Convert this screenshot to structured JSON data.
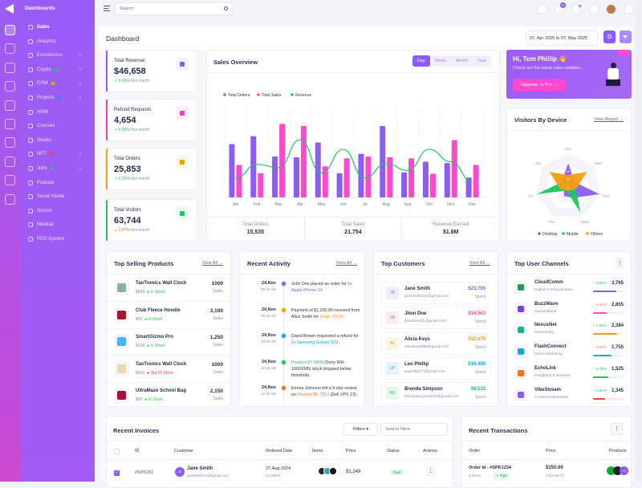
{
  "sidebar": {
    "section": "Dashboards",
    "items": [
      {
        "label": "Sales",
        "active": true
      },
      {
        "label": "Analytics"
      },
      {
        "label": "Ecommerce",
        "chev": true
      },
      {
        "label": "Crypto",
        "chev": true,
        "badge": "#22c55e"
      },
      {
        "label": "CRM",
        "chev": true,
        "badge": "#f59e0b"
      },
      {
        "label": "Projects",
        "chev": true,
        "badge": "#3b82f6"
      },
      {
        "label": "HRM"
      },
      {
        "label": "Courses"
      },
      {
        "label": "Stocks"
      },
      {
        "label": "NFT",
        "chev": true,
        "badge": "#ef4444"
      },
      {
        "label": "Jobs",
        "chev": true,
        "badge": "#22c55e"
      },
      {
        "label": "Podcast"
      },
      {
        "label": "Social Media"
      },
      {
        "label": "School"
      },
      {
        "label": "Medical"
      },
      {
        "label": "POS System"
      }
    ],
    "rail_icons": [
      "home-icon",
      "apps-icon",
      "layers-icon",
      "file-icon",
      "diamond-icon",
      "gift-icon",
      "compass-icon",
      "store-icon",
      "chart-icon",
      "table-icon"
    ]
  },
  "topbar": {
    "search_placeholder": "Search",
    "cart_count": "5"
  },
  "header": {
    "title": "Dashboard",
    "date_range": "07, Apr 2025 to 07, May 2025"
  },
  "stats": [
    {
      "label": "Total Revenue",
      "value": "$46,658",
      "change": "0.45%",
      "trend": "up",
      "suffix": "this month",
      "color": "#8b5cf6"
    },
    {
      "label": "Refund Requests",
      "value": "4,654",
      "change": "4.43%",
      "trend": "up",
      "suffix": "this month",
      "color": "#f43fb5"
    },
    {
      "label": "Total Orders",
      "value": "25,853",
      "change": "1.25%",
      "trend": "up",
      "suffix": "this month",
      "color": "#f59e0b"
    },
    {
      "label": "Total Visitors",
      "value": "63,744",
      "change": "2.97%",
      "trend": "down",
      "suffix": "this month",
      "color": "#22c55e"
    }
  ],
  "sales_overview": {
    "title": "Sales Overview",
    "tabs": [
      "Day",
      "Week",
      "Month",
      "Year"
    ],
    "active_tab": "Day",
    "footer": [
      {
        "label": "Total Orders",
        "value": "15,535"
      },
      {
        "label": "Total Sales",
        "value": "21,754"
      },
      {
        "label": "Revenue Earned",
        "value": "$1.8M"
      }
    ]
  },
  "chart_data": [
    {
      "type": "bar",
      "categories": [
        "Jan",
        "Feb",
        "Mar",
        "Apr",
        "May",
        "Jun",
        "Jul",
        "Aug",
        "Sep",
        "Oct",
        "Nov",
        "Dec"
      ],
      "series": [
        {
          "name": "Total Orders",
          "type": "bar",
          "color": "#8b5cf6",
          "values": [
            202,
            232,
            155,
            152,
            208,
            92,
            165,
            270,
            95,
            135,
            130,
            75
          ]
        },
        {
          "name": "Total Sales",
          "type": "bar",
          "color": "#ff49cd",
          "values": [
            123,
            92,
            278,
            270,
            118,
            148,
            155,
            152,
            148,
            90,
            217,
            123
          ]
        },
        {
          "name": "Revenue",
          "type": "line",
          "color": "#22c55e",
          "values": [
            72,
            125,
            113,
            218,
            93,
            182,
            74,
            128,
            102,
            182,
            135,
            60
          ]
        }
      ],
      "ylim": [
        0,
        340
      ],
      "grid": "vertical dashed",
      "legend": "top-left"
    },
    {
      "type": "radar",
      "title": "Visitors By Device",
      "axes": [
        "Sun",
        "Mon",
        "Tues",
        "Wed",
        "Thu",
        "Fri",
        "Sat"
      ],
      "ticks": [
        "0",
        "20",
        "40",
        "60"
      ],
      "rmax": 80,
      "series": [
        {
          "name": "Desktop",
          "color": "#8b5cf6",
          "values": [
            60,
            20,
            80,
            30,
            25,
            10,
            20
          ]
        },
        {
          "name": "Mobile",
          "color": "#22c55e",
          "values": [
            10,
            15,
            20,
            70,
            10,
            80,
            20
          ]
        },
        {
          "name": "Others",
          "color": "#f59e0b",
          "values": [
            30,
            60,
            20,
            10,
            10,
            20,
            60
          ]
        }
      ],
      "legend": "bottom"
    }
  ],
  "promo": {
    "greeting": "Hi, Tom Phillip 👋",
    "text": "Check out the latest sales updates.",
    "button": "Upgrade To Pro →"
  },
  "visitors": {
    "title": "Visitors By Device",
    "link": "View Report →"
  },
  "top_products": {
    "title": "Top Selling Products",
    "link": "View All →",
    "items": [
      {
        "name": "TaoTronics Wall Clock",
        "price": "$699",
        "status": "In Stock",
        "sales": "1000",
        "unit": "Sales"
      },
      {
        "name": "Club Fleece Hoodie",
        "price": "$55",
        "status": "In Stock",
        "sales": "3,100",
        "unit": "Sales"
      },
      {
        "name": "SmartGizmo Pro",
        "price": "$199",
        "status": "In Stock",
        "sales": "1,250",
        "unit": "Sales"
      },
      {
        "name": "TaoTronics Wall Clock",
        "price": "$699",
        "status": "Out Of Stock",
        "sales": "1000",
        "unit": "Sales"
      },
      {
        "name": "UltraMaze School Bag",
        "price": "$89",
        "status": "In Stock",
        "sales": "2,150",
        "unit": "Sales"
      }
    ]
  },
  "activity": {
    "title": "Recent Activity",
    "link": "View All →",
    "items": [
      {
        "date": "24,Nov",
        "time": "08:45 AM",
        "color": "#8b5cf6",
        "pre": "John Doe placed an order for ",
        "hl": "5x Apple iPhone 14",
        "post": ""
      },
      {
        "date": "24,Nov",
        "time": "09:15 AM",
        "color": "#f59e0b",
        "pre": "Payment of $1,250.00 received from Alice Smith for ",
        "hl": "Order #1020",
        "post": "."
      },
      {
        "date": "24,Nov",
        "time": "10:00 AM",
        "color": "#0ea5e9",
        "pre": "David Brown requested a refund for ",
        "hl": "1x Samsung Galaxy S22",
        "post": "."
      },
      {
        "date": "24,Nov",
        "time": "10:45 AM",
        "color": "#22c55e",
        "pre": "",
        "hl": "Product ID: 5409",
        "post": " (Sony WH-1000XM5) stock dropped below threshold."
      },
      {
        "date": "24,Nov",
        "time": "11:30 AM",
        "color": "#f97316",
        "pre": "Emma Johnson left a 5-star review on ",
        "hl": "Product ID: 7312",
        "post": " (Dell XPS 13)."
      }
    ]
  },
  "customers": {
    "title": "Top Customers",
    "link": "View All →",
    "items": [
      {
        "initials": "JS",
        "name": "Jane Smith",
        "email": "janesmith215@gmail.com",
        "amount": "$23,755",
        "label": "Spent",
        "color": "#8b5cf6"
      },
      {
        "initials": "JD",
        "name": "Jhon Doe",
        "email": "jhondoe431@gmail.com",
        "amount": "$14,563",
        "label": "Spent",
        "color": "#ec4899"
      },
      {
        "initials": "AK",
        "name": "Alicia Keys",
        "email": "aliciakeys986@gmail.com",
        "amount": "$12,075",
        "label": "Spent",
        "color": "#f59e0b"
      },
      {
        "initials": "LP",
        "name": "Leo Phillip",
        "email": "leophillip77@gmail.com",
        "amount": "$10,485",
        "label": "Spent",
        "color": "#0ea5e9"
      },
      {
        "initials": "BS",
        "name": "Brenda Simpson",
        "email": "brendasimpson075@gmail.com",
        "amount": "$8,533",
        "label": "Spent",
        "color": "#22c55e"
      }
    ]
  },
  "channels": {
    "title": "Top User Channels",
    "items": [
      {
        "name": "CloudComm",
        "sub": "Digital Communication",
        "change": "2.08%",
        "trend": "up",
        "value": "3,765",
        "progress": 75,
        "color": "#8b5cf6",
        "icon": "#16a34a"
      },
      {
        "name": "BuzzWave",
        "sub": "Social Media",
        "change": "6.45%",
        "trend": "down",
        "value": "2,855",
        "progress": 45,
        "color": "#ff49cd",
        "icon": "#7c3aed"
      },
      {
        "name": "NexusNet",
        "sub": "Networking",
        "change": "1.95%",
        "trend": "up",
        "value": "2,384",
        "progress": 80,
        "color": "#f59e0b",
        "icon": "#10b981"
      },
      {
        "name": "FlashConnect",
        "sub": "Direct Marketing",
        "change": "5.01%",
        "trend": "down",
        "value": "1,755",
        "progress": 60,
        "color": "#0ea5e9",
        "icon": "#0ea5e9"
      },
      {
        "name": "EchoLink",
        "sub": "Feedback & Surveys",
        "change": "3.75%",
        "trend": "up",
        "value": "1,525",
        "progress": 50,
        "color": "#22c55e",
        "icon": "#f97316"
      },
      {
        "name": "VibeStream",
        "sub": "Content Distribution",
        "change": "0.95%",
        "trend": "up",
        "value": "1,345",
        "progress": 40,
        "color": "#ef4444",
        "icon": "#8b5cf6"
      }
    ]
  },
  "invoices": {
    "title": "Recent Invoices",
    "filters": "Filters",
    "search_placeholder": "Search Here",
    "columns": [
      "ID",
      "Customer",
      "Ordered Date",
      "Items",
      "Price",
      "Status",
      "Actions"
    ],
    "rows": [
      {
        "checked": true,
        "id": "#SPK231",
        "initials": "JS",
        "name": "Jane Smith",
        "email": "janesmith213@gmail.com",
        "date": "27,Aug 2024",
        "time": "12:45PM",
        "price": "$1,249",
        "status": "Paid"
      }
    ]
  },
  "transactions": {
    "title": "Recent Transactions",
    "columns": [
      "Order",
      "Price",
      "Products"
    ],
    "rows": [
      {
        "order": "Order Id - #SPK1234",
        "items": "4 Items",
        "status": "Paid",
        "price": "$150.00",
        "date": "2024-08-27",
        "more": "+2"
      }
    ]
  },
  "colors": {
    "accent": "#8b5cf6",
    "pink": "#ff49cd",
    "green": "#22c55e",
    "red": "#ef4444"
  }
}
